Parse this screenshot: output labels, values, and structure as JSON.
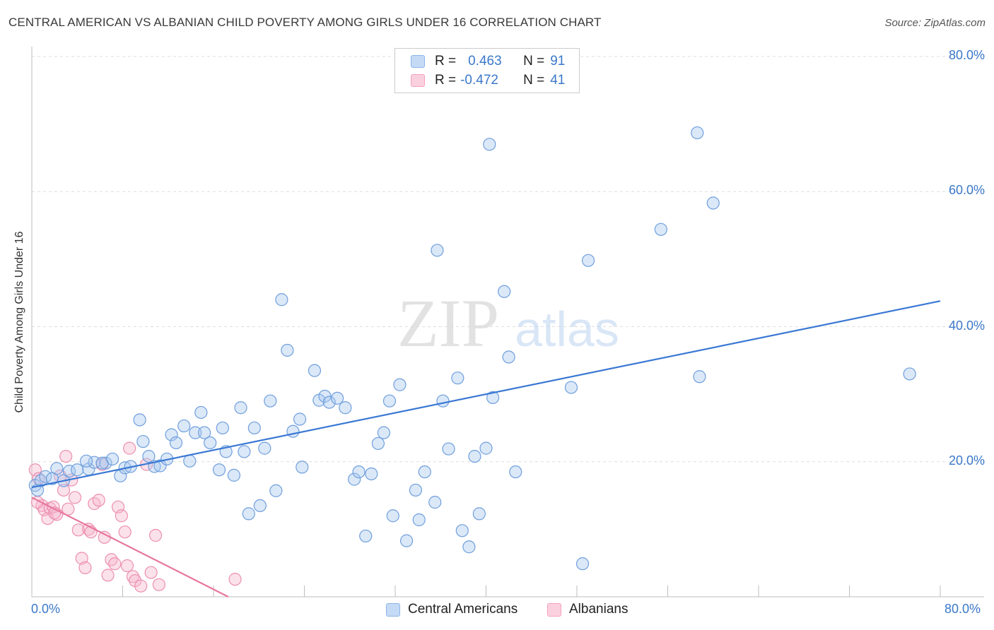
{
  "header": {
    "title": "CENTRAL AMERICAN VS ALBANIAN CHILD POVERTY AMONG GIRLS UNDER 16 CORRELATION CHART",
    "source": "Source: ZipAtlas.com"
  },
  "watermark": {
    "zip": "ZIP",
    "atlas": "atlas"
  },
  "legend": {
    "rows": [
      {
        "r_label": "R =",
        "r_value": "0.463",
        "n_label": "N =",
        "n_value": "91",
        "color": "#8ab4e8"
      },
      {
        "r_label": "R =",
        "r_value": "-0.472",
        "n_label": "N =",
        "n_value": "41",
        "color": "#f4a0bc"
      }
    ]
  },
  "chart_data": {
    "type": "scatter",
    "title": "CENTRAL AMERICAN VS ALBANIAN CHILD POVERTY AMONG GIRLS UNDER 16 CORRELATION CHART",
    "xlabel": "",
    "ylabel": "Child Poverty Among Girls Under 16",
    "xlim": [
      0,
      80
    ],
    "ylim": [
      0,
      80
    ],
    "x_tick_labels": [
      "0.0%",
      "80.0%"
    ],
    "y_tick_labels": [
      "80.0%",
      "60.0%",
      "40.0%",
      "20.0%"
    ],
    "y_ticks": [
      80,
      60,
      40,
      20
    ],
    "grid": true,
    "legend_position": "top-center",
    "colors": {
      "central": "#3a78d4",
      "albanian": "#e8779e"
    },
    "series": [
      {
        "name": "Central Americans",
        "r": 0.463,
        "n": 91,
        "trend": {
          "x": [
            0,
            80
          ],
          "y": [
            16.2,
            43.8
          ]
        },
        "points": [
          [
            0.3,
            16.5
          ],
          [
            0.5,
            15.8
          ],
          [
            0.8,
            17.2
          ],
          [
            1.2,
            17.8
          ],
          [
            1.8,
            17.5
          ],
          [
            2.2,
            19.0
          ],
          [
            2.8,
            17.2
          ],
          [
            3.3,
            18.6
          ],
          [
            4.0,
            18.8
          ],
          [
            5.0,
            18.9
          ],
          [
            5.5,
            19.9
          ],
          [
            4.8,
            20.1
          ],
          [
            6.5,
            19.8
          ],
          [
            6.2,
            19.8
          ],
          [
            7.1,
            20.4
          ],
          [
            7.8,
            17.9
          ],
          [
            8.2,
            19.1
          ],
          [
            8.7,
            19.3
          ],
          [
            9.5,
            26.2
          ],
          [
            9.8,
            23.0
          ],
          [
            10.3,
            20.8
          ],
          [
            10.8,
            19.3
          ],
          [
            11.3,
            19.4
          ],
          [
            11.9,
            20.4
          ],
          [
            12.3,
            24.0
          ],
          [
            12.7,
            22.8
          ],
          [
            13.4,
            25.3
          ],
          [
            13.9,
            20.1
          ],
          [
            14.4,
            24.3
          ],
          [
            14.9,
            27.3
          ],
          [
            15.2,
            24.3
          ],
          [
            15.7,
            22.8
          ],
          [
            16.5,
            18.8
          ],
          [
            16.8,
            25.0
          ],
          [
            17.1,
            21.5
          ],
          [
            17.8,
            18.0
          ],
          [
            18.4,
            28.0
          ],
          [
            18.7,
            21.5
          ],
          [
            19.1,
            12.3
          ],
          [
            19.6,
            25.0
          ],
          [
            20.1,
            13.5
          ],
          [
            20.5,
            22.0
          ],
          [
            21.0,
            29.0
          ],
          [
            21.5,
            15.7
          ],
          [
            22.0,
            44.0
          ],
          [
            22.5,
            36.5
          ],
          [
            23.0,
            24.5
          ],
          [
            23.6,
            26.3
          ],
          [
            23.8,
            19.2
          ],
          [
            24.9,
            33.5
          ],
          [
            25.3,
            29.1
          ],
          [
            25.8,
            29.7
          ],
          [
            26.2,
            28.8
          ],
          [
            26.9,
            29.4
          ],
          [
            27.6,
            28.0
          ],
          [
            28.4,
            17.4
          ],
          [
            28.8,
            18.5
          ],
          [
            29.4,
            9.0
          ],
          [
            29.9,
            18.2
          ],
          [
            30.5,
            22.7
          ],
          [
            31.0,
            24.3
          ],
          [
            31.5,
            29.0
          ],
          [
            31.8,
            12.0
          ],
          [
            32.4,
            31.4
          ],
          [
            33.0,
            8.3
          ],
          [
            33.8,
            15.8
          ],
          [
            34.1,
            11.4
          ],
          [
            34.6,
            18.5
          ],
          [
            35.5,
            14.0
          ],
          [
            35.7,
            51.3
          ],
          [
            36.2,
            29.0
          ],
          [
            36.7,
            21.9
          ],
          [
            37.5,
            32.4
          ],
          [
            37.9,
            9.8
          ],
          [
            38.5,
            7.4
          ],
          [
            39.0,
            20.8
          ],
          [
            39.4,
            12.3
          ],
          [
            40.0,
            22.0
          ],
          [
            40.3,
            67.0
          ],
          [
            40.6,
            29.5
          ],
          [
            41.6,
            45.2
          ],
          [
            42.0,
            35.5
          ],
          [
            42.6,
            18.5
          ],
          [
            47.5,
            31.0
          ],
          [
            48.5,
            4.9
          ],
          [
            49.0,
            49.8
          ],
          [
            55.4,
            54.4
          ],
          [
            58.8,
            32.6
          ],
          [
            60.0,
            58.3
          ],
          [
            58.6,
            68.7
          ],
          [
            77.3,
            33.0
          ]
        ]
      },
      {
        "name": "Albanians",
        "r": -0.472,
        "n": 41,
        "trend": {
          "x": [
            0,
            17.3
          ],
          "y": [
            14.7,
            0
          ]
        },
        "points": [
          [
            0.3,
            18.8
          ],
          [
            0.6,
            17.5
          ],
          [
            0.9,
            13.5
          ],
          [
            1.1,
            12.9
          ],
          [
            1.4,
            11.6
          ],
          [
            1.6,
            13.1
          ],
          [
            1.9,
            13.3
          ],
          [
            2.2,
            12.2
          ],
          [
            2.5,
            17.9
          ],
          [
            2.8,
            15.8
          ],
          [
            3.0,
            20.8
          ],
          [
            3.2,
            13.0
          ],
          [
            3.5,
            17.3
          ],
          [
            3.8,
            14.7
          ],
          [
            4.1,
            9.9
          ],
          [
            4.4,
            5.7
          ],
          [
            4.7,
            4.3
          ],
          [
            5.0,
            10.0
          ],
          [
            5.2,
            9.6
          ],
          [
            5.5,
            13.8
          ],
          [
            5.9,
            14.3
          ],
          [
            6.2,
            19.6
          ],
          [
            6.4,
            8.8
          ],
          [
            6.7,
            3.2
          ],
          [
            7.0,
            5.5
          ],
          [
            7.3,
            4.9
          ],
          [
            7.6,
            13.3
          ],
          [
            7.9,
            12.0
          ],
          [
            8.2,
            9.6
          ],
          [
            8.4,
            4.6
          ],
          [
            8.6,
            22.0
          ],
          [
            8.9,
            3.0
          ],
          [
            9.1,
            2.4
          ],
          [
            9.6,
            1.6
          ],
          [
            10.1,
            19.6
          ],
          [
            10.5,
            3.6
          ],
          [
            10.9,
            9.1
          ],
          [
            11.2,
            1.8
          ],
          [
            2.0,
            12.4
          ],
          [
            17.9,
            2.6
          ],
          [
            0.5,
            14.0
          ]
        ]
      }
    ]
  }
}
